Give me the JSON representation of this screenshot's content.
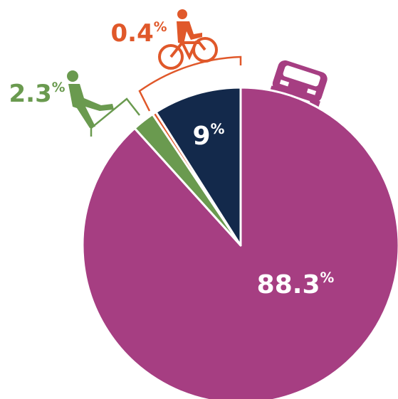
{
  "chart_data": {
    "type": "pie",
    "values": [
      88.3,
      2.3,
      0.4,
      9
    ],
    "value_labels": [
      "88.3%",
      "2.3%",
      "0.4%",
      "9%"
    ],
    "colors": [
      "#a63e82",
      "#6a9a4f",
      "#e0582a",
      "#13294b"
    ]
  }
}
